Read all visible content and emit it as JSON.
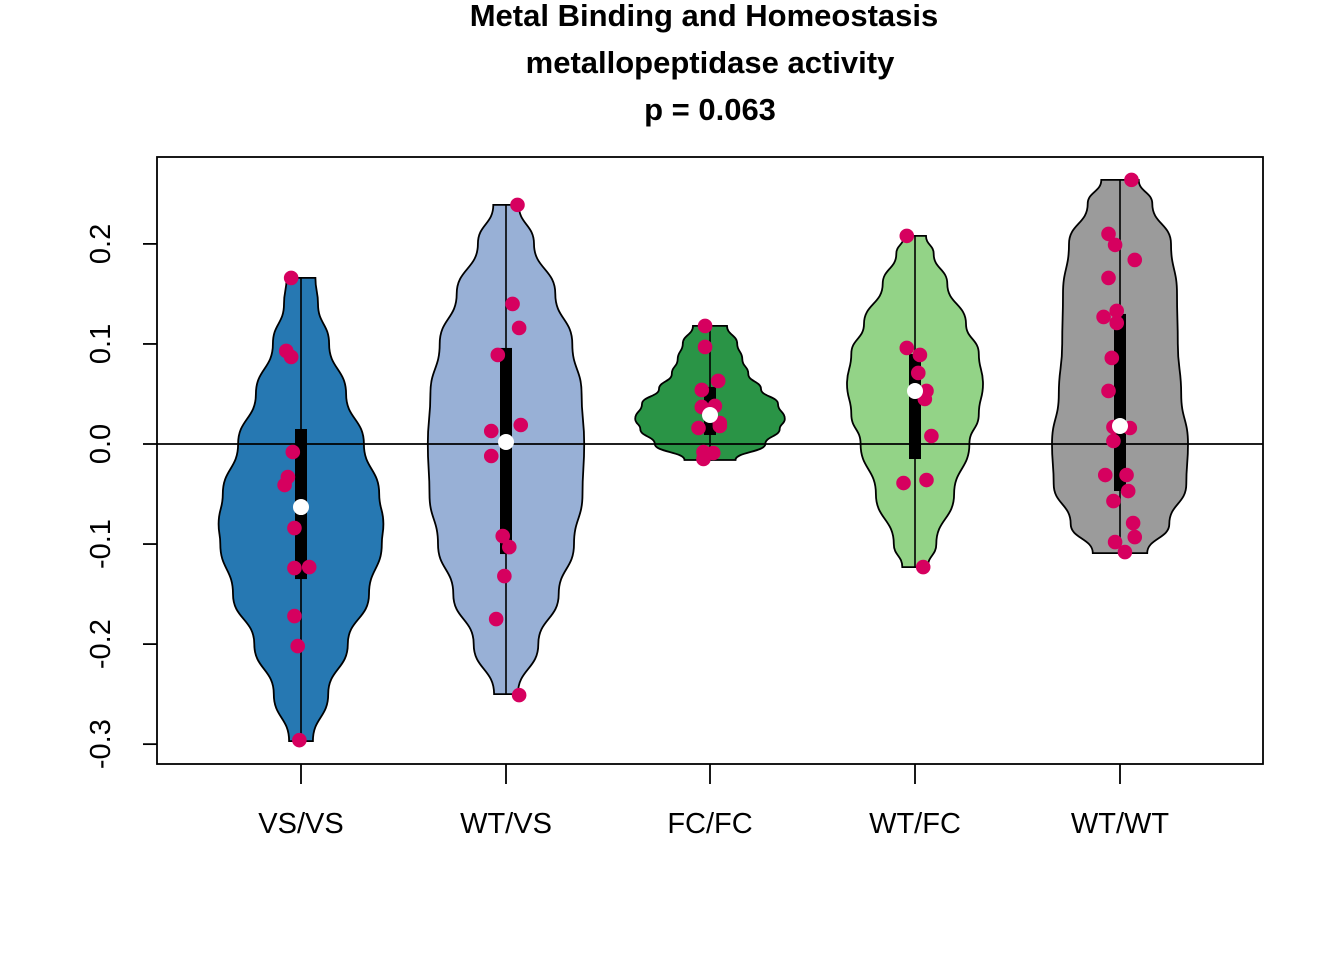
{
  "chart_data": {
    "type": "violin",
    "title_lines": [
      "Metal Binding and Homeostasis",
      "metallopeptidase activity",
      "p = 0.063"
    ],
    "xlabel": "",
    "ylabel": "",
    "ylim": [
      -0.315,
      0.288
    ],
    "yticks": [
      -0.3,
      -0.2,
      -0.1,
      0.0,
      0.1,
      0.2
    ],
    "ytick_labels": [
      "-0.3",
      "-0.2",
      "-0.1",
      "0.0",
      "0.1",
      "0.2"
    ],
    "reference_line_y": 0.0,
    "point_color": "#D6005F",
    "median_color": "#FFFFFF",
    "box_color": "#000000",
    "grid": false,
    "legend": "none",
    "categories": [
      "VS/VS",
      "WT/VS",
      "FC/FC",
      "WT/FC",
      "WT/WT"
    ],
    "series": [
      {
        "name": "VS/VS",
        "color": "#2678B2",
        "min": -0.297,
        "max": 0.166,
        "q1": -0.135,
        "q3": 0.015,
        "median": -0.063,
        "density": [
          [
            -0.297,
            0.14
          ],
          [
            -0.25,
            0.32
          ],
          [
            -0.2,
            0.55
          ],
          [
            -0.15,
            0.8
          ],
          [
            -0.1,
            0.95
          ],
          [
            -0.08,
            0.97
          ],
          [
            -0.05,
            0.92
          ],
          [
            0.0,
            0.74
          ],
          [
            0.05,
            0.53
          ],
          [
            0.1,
            0.33
          ],
          [
            0.14,
            0.2
          ],
          [
            0.166,
            0.17
          ]
        ],
        "points": [
          {
            "x": -0.06,
            "y": 0.166
          },
          {
            "x": -0.09,
            "y": 0.093
          },
          {
            "x": -0.06,
            "y": 0.087
          },
          {
            "x": -0.05,
            "y": -0.008
          },
          {
            "x": -0.08,
            "y": -0.033
          },
          {
            "x": -0.1,
            "y": -0.041
          },
          {
            "x": -0.04,
            "y": -0.084
          },
          {
            "x": -0.04,
            "y": -0.124
          },
          {
            "x": 0.05,
            "y": -0.123
          },
          {
            "x": -0.04,
            "y": -0.172
          },
          {
            "x": -0.02,
            "y": -0.202
          },
          {
            "x": -0.01,
            "y": -0.296
          }
        ]
      },
      {
        "name": "WT/VS",
        "color": "#98B0D6",
        "min": -0.25,
        "max": 0.239,
        "q1": -0.11,
        "q3": 0.096,
        "median": 0.002,
        "density": [
          [
            -0.25,
            0.14
          ],
          [
            -0.2,
            0.38
          ],
          [
            -0.15,
            0.62
          ],
          [
            -0.1,
            0.8
          ],
          [
            -0.05,
            0.9
          ],
          [
            0.0,
            0.92
          ],
          [
            0.05,
            0.89
          ],
          [
            0.1,
            0.78
          ],
          [
            0.15,
            0.58
          ],
          [
            0.2,
            0.33
          ],
          [
            0.239,
            0.15
          ]
        ],
        "points": [
          {
            "x": 0.07,
            "y": 0.239
          },
          {
            "x": 0.04,
            "y": 0.14
          },
          {
            "x": 0.08,
            "y": 0.116
          },
          {
            "x": -0.05,
            "y": 0.089
          },
          {
            "x": 0.09,
            "y": 0.019
          },
          {
            "x": -0.09,
            "y": 0.013
          },
          {
            "x": -0.09,
            "y": -0.012
          },
          {
            "x": -0.02,
            "y": -0.092
          },
          {
            "x": 0.02,
            "y": -0.103
          },
          {
            "x": -0.01,
            "y": -0.132
          },
          {
            "x": -0.06,
            "y": -0.175
          },
          {
            "x": 0.08,
            "y": -0.251
          }
        ]
      },
      {
        "name": "FC/FC",
        "color": "#2A9446",
        "min": -0.016,
        "max": 0.118,
        "q1": 0.009,
        "q3": 0.057,
        "median": 0.029,
        "density": [
          [
            -0.016,
            0.3
          ],
          [
            0.0,
            0.65
          ],
          [
            0.015,
            0.82
          ],
          [
            0.025,
            0.88
          ],
          [
            0.04,
            0.8
          ],
          [
            0.055,
            0.6
          ],
          [
            0.07,
            0.45
          ],
          [
            0.085,
            0.38
          ],
          [
            0.1,
            0.32
          ],
          [
            0.118,
            0.2
          ]
        ],
        "points": [
          {
            "x": -0.03,
            "y": 0.118
          },
          {
            "x": -0.03,
            "y": 0.097
          },
          {
            "x": 0.05,
            "y": 0.063
          },
          {
            "x": -0.05,
            "y": 0.054
          },
          {
            "x": -0.05,
            "y": 0.037
          },
          {
            "x": 0.03,
            "y": 0.038
          },
          {
            "x": 0.06,
            "y": 0.021
          },
          {
            "x": 0.06,
            "y": 0.018
          },
          {
            "x": -0.07,
            "y": 0.016
          },
          {
            "x": -0.04,
            "y": -0.008
          },
          {
            "x": 0.02,
            "y": -0.009
          },
          {
            "x": -0.04,
            "y": -0.015
          }
        ]
      },
      {
        "name": "WT/FC",
        "color": "#93D387",
        "min": -0.123,
        "max": 0.208,
        "q1": -0.015,
        "q3": 0.09,
        "median": 0.053,
        "density": [
          [
            -0.123,
            0.15
          ],
          [
            -0.1,
            0.25
          ],
          [
            -0.05,
            0.46
          ],
          [
            0.0,
            0.64
          ],
          [
            0.03,
            0.75
          ],
          [
            0.06,
            0.8
          ],
          [
            0.09,
            0.75
          ],
          [
            0.12,
            0.6
          ],
          [
            0.16,
            0.38
          ],
          [
            0.19,
            0.22
          ],
          [
            0.208,
            0.13
          ]
        ],
        "points": [
          {
            "x": -0.05,
            "y": 0.208
          },
          {
            "x": -0.05,
            "y": 0.096
          },
          {
            "x": 0.03,
            "y": 0.089
          },
          {
            "x": 0.02,
            "y": 0.071
          },
          {
            "x": 0.07,
            "y": 0.053
          },
          {
            "x": 0.06,
            "y": 0.045
          },
          {
            "x": 0.1,
            "y": 0.008
          },
          {
            "x": -0.07,
            "y": -0.039
          },
          {
            "x": 0.07,
            "y": -0.036
          },
          {
            "x": 0.05,
            "y": -0.123
          }
        ]
      },
      {
        "name": "WT/WT",
        "color": "#9B9B9B",
        "min": -0.109,
        "max": 0.264,
        "q1": -0.047,
        "q3": 0.13,
        "median": 0.018,
        "density": [
          [
            -0.109,
            0.32
          ],
          [
            -0.08,
            0.58
          ],
          [
            -0.04,
            0.78
          ],
          [
            0.0,
            0.8
          ],
          [
            0.05,
            0.72
          ],
          [
            0.1,
            0.68
          ],
          [
            0.15,
            0.67
          ],
          [
            0.2,
            0.6
          ],
          [
            0.24,
            0.38
          ],
          [
            0.264,
            0.22
          ]
        ],
        "points": [
          {
            "x": 0.07,
            "y": 0.264
          },
          {
            "x": -0.07,
            "y": 0.21
          },
          {
            "x": -0.03,
            "y": 0.199
          },
          {
            "x": 0.09,
            "y": 0.184
          },
          {
            "x": -0.07,
            "y": 0.166
          },
          {
            "x": -0.02,
            "y": 0.133
          },
          {
            "x": -0.1,
            "y": 0.127
          },
          {
            "x": -0.02,
            "y": 0.121
          },
          {
            "x": -0.05,
            "y": 0.086
          },
          {
            "x": -0.07,
            "y": 0.053
          },
          {
            "x": -0.04,
            "y": 0.017
          },
          {
            "x": 0.06,
            "y": 0.016
          },
          {
            "x": -0.04,
            "y": 0.003
          },
          {
            "x": -0.09,
            "y": -0.031
          },
          {
            "x": 0.04,
            "y": -0.031
          },
          {
            "x": 0.05,
            "y": -0.047
          },
          {
            "x": -0.04,
            "y": -0.057
          },
          {
            "x": 0.08,
            "y": -0.079
          },
          {
            "x": 0.09,
            "y": -0.093
          },
          {
            "x": -0.03,
            "y": -0.098
          },
          {
            "x": 0.03,
            "y": -0.108
          }
        ]
      }
    ]
  }
}
